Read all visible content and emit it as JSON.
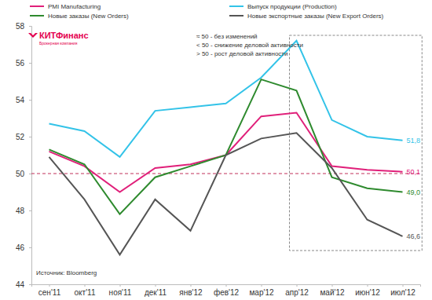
{
  "chart_data": {
    "type": "line",
    "categories": [
      "сен'11",
      "окт'11",
      "ноя'11",
      "дек'11",
      "янв'12",
      "фев'12",
      "мар'12",
      "апр'12",
      "май'12",
      "июн'12",
      "июл'12"
    ],
    "series": [
      {
        "name": "PMI Manufacturing",
        "color": "#e0207a",
        "values": [
          51.2,
          50.4,
          49.0,
          50.3,
          50.5,
          51.0,
          53.1,
          53.3,
          50.4,
          50.2,
          50.1
        ],
        "value_labels": [
          null,
          null,
          null,
          null,
          null,
          null,
          null,
          null,
          null,
          null,
          "50,1"
        ]
      },
      {
        "name": "Выпуск продукции (Production)",
        "color": "#33c3e8",
        "values": [
          52.7,
          52.3,
          50.9,
          53.4,
          53.6,
          53.8,
          55.2,
          57.2,
          52.9,
          52.0,
          51.8
        ],
        "value_labels": [
          null,
          null,
          null,
          null,
          null,
          null,
          null,
          null,
          null,
          null,
          "51,8"
        ]
      },
      {
        "name": "Новые заказы (New Orders)",
        "color": "#2e8a2e",
        "values": [
          51.3,
          50.5,
          47.8,
          49.8,
          50.4,
          51.0,
          55.1,
          54.5,
          49.8,
          49.2,
          49.0
        ],
        "value_labels": [
          null,
          null,
          null,
          null,
          null,
          null,
          null,
          null,
          null,
          null,
          "49,0"
        ]
      },
      {
        "name": "Новые экспортные заказы (New Export Orders)",
        "color": "#555555",
        "values": [
          50.9,
          48.6,
          45.6,
          48.6,
          46.9,
          51.0,
          51.9,
          52.2,
          50.3,
          47.5,
          46.6
        ],
        "value_labels": [
          null,
          null,
          null,
          null,
          null,
          null,
          null,
          null,
          null,
          null,
          "46,6"
        ]
      }
    ],
    "ylim": [
      44,
      58
    ],
    "yticks": [
      44,
      46,
      48,
      50,
      52,
      54,
      56,
      58
    ],
    "grid": false,
    "legend": "top",
    "reference_line": 50,
    "highlight_range": [
      7,
      10
    ],
    "notes": [
      "≈ 50 - без изменений",
      "< 50 - снижение деловой активности",
      "> 50 - рост деловой активности"
    ],
    "logo": "КИТФинанс",
    "logo_subtitle": "Брокерная компания",
    "source": "Источник: Bloomberg"
  }
}
